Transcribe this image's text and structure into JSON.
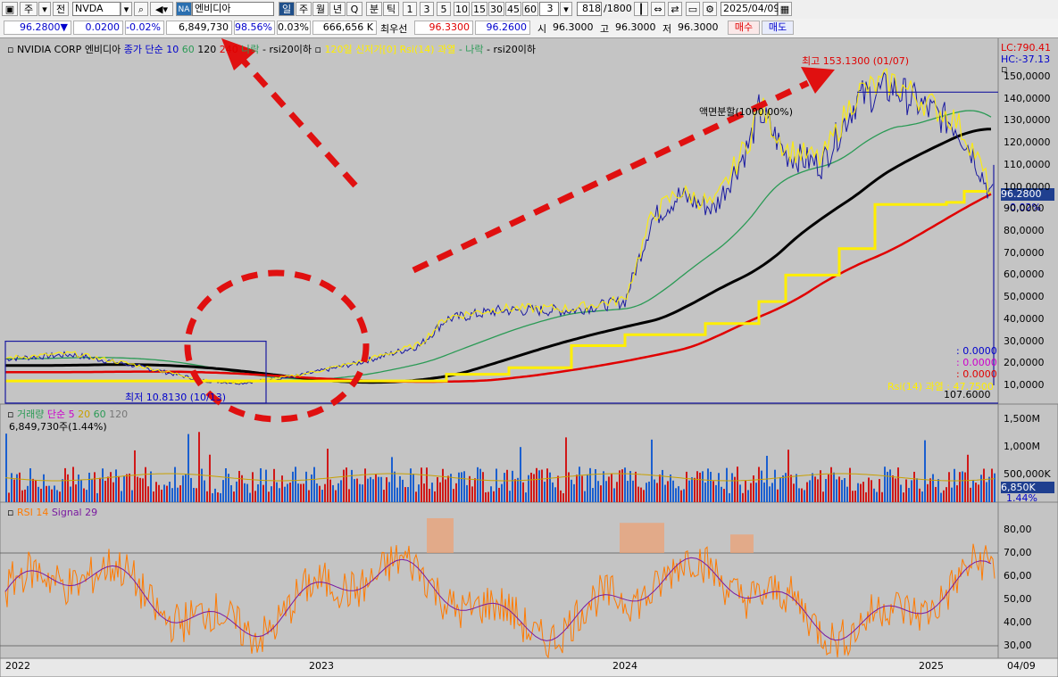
{
  "toolbar": {
    "week_label": "주",
    "all_label": "전",
    "ticker": "NVDA",
    "badge": "NA",
    "stock_name": "엔비디아",
    "periods": [
      "일",
      "주",
      "월",
      "년",
      "Q",
      "분",
      "틱"
    ],
    "intervals": [
      "1",
      "3",
      "5",
      "10",
      "15",
      "30",
      "45",
      "60"
    ],
    "custom_interval": "3",
    "count": "818",
    "count_total": "/1800",
    "date": "2025/04/09"
  },
  "infobar": {
    "price": "96.2800",
    "change_arrow": "▼",
    "change": "0.0200",
    "change_pct": "-0.02%",
    "volume": "6,849,730",
    "volume_pct": "98.56%",
    "turnover_pct": "0.03%",
    "amount": "666,656 K",
    "best_bid_label": "최우선",
    "best_ask": "96.3300",
    "best_bid": "96.2600",
    "open_label": "시",
    "open": "96.3000",
    "high_label": "고",
    "high": "96.3000",
    "low_label": "저",
    "low": "96.3000",
    "buy_button": "매수",
    "sell_button": "매도"
  },
  "price_panel": {
    "legend": {
      "company": "NVIDIA CORP",
      "name": "엔비디아",
      "ma_prefix": "종가 단순 10",
      "ma_60": "60",
      "ma_120": "120",
      "ma_240": "240",
      "ma_suffix": "나락",
      "rsi_item": "- rsi20이하",
      "new_high": "120일 신저가[0]",
      "rsi_over": "Rsi(14) 과열",
      "ma_suffix2": "- 나락",
      "rsi_item2": "- rsi20이하"
    },
    "lc": "LC:790.41",
    "hc": "HC:-37.13",
    "high_annotation": "최고 153.1300 (01/07)",
    "low_annotation": "최저 10.8130 (10/13)",
    "split_annotation": "액면분할(1000.00%)",
    "current_price": "96.2800",
    "current_pct": "-0.02%",
    "y_ticks": [
      "150,0000",
      "140,0000",
      "130,0000",
      "120,0000",
      "110,0000",
      "100,0000",
      "90,0000",
      "80,0000",
      "70,0000",
      "60,0000",
      "50,0000",
      "40,0000",
      "30,0000",
      "20,0000",
      "10,0000"
    ],
    "zero_values": [
      ": 0.0000",
      ": 0.0000",
      ": 0.0000"
    ],
    "rsi_label": "Rsi(14) 과열 : 47.7500",
    "bottom_values": "107.6000"
  },
  "volume_panel": {
    "legend_name": "거래량",
    "legend_ma": "단순 5",
    "legend_20": "20",
    "legend_60": "60",
    "legend_120": "120",
    "volume_text": "6,849,730주(1.44%)",
    "y_ticks": [
      "1,500M",
      "1,000M",
      "500,000K"
    ],
    "current": "6,850K",
    "current_pct": "1.44%"
  },
  "rsi_panel": {
    "legend_name": "RSI 14",
    "legend_signal": "Signal 29",
    "y_ticks": [
      "80,00",
      "70,00",
      "60,00",
      "50,00",
      "40,00",
      "30,00"
    ]
  },
  "x_axis": {
    "labels": [
      "2022",
      "2023",
      "2024",
      "2025",
      "04/09"
    ]
  },
  "colors": {
    "price_ma10": "#1a1aa0",
    "ma60": "#2a9a55",
    "ma120": "#000000",
    "ma240": "#e00000",
    "yellow": "#ffee00",
    "annotation": "#e01010"
  }
}
